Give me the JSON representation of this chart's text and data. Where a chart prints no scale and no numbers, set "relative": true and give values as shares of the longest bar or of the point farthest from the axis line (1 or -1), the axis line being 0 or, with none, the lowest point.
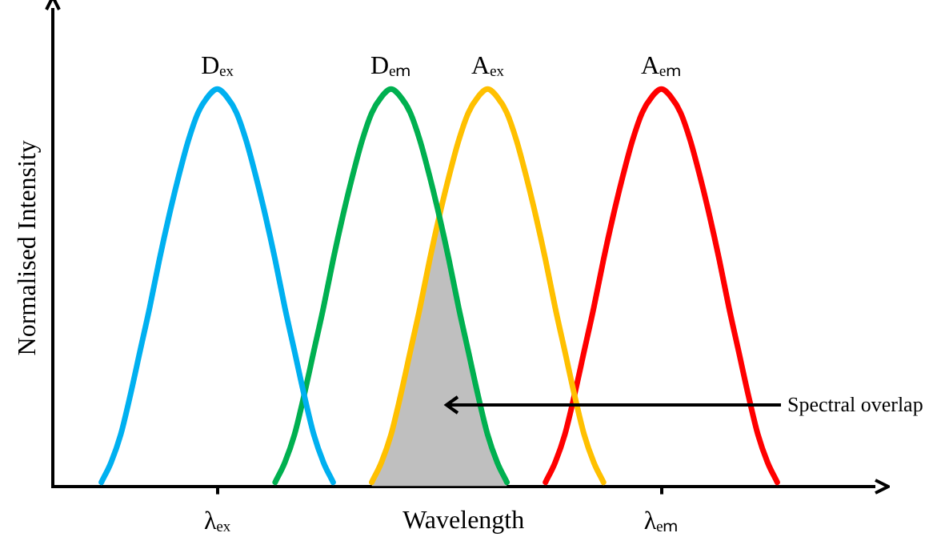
{
  "chart_data": {
    "type": "line",
    "relative": true,
    "xlabel": "Wavelength",
    "ylabel": "Normalised Intensity",
    "grid": false,
    "legend": false,
    "marker": "none",
    "line_style": "solid",
    "annotations": [
      "Spectral overlap"
    ],
    "categories": [
      null,
      null,
      null,
      null,
      null,
      null,
      null,
      null,
      null,
      null,
      null,
      null,
      null,
      null,
      null,
      null,
      null,
      "λₑₓ",
      null,
      null,
      null,
      null,
      null,
      null,
      null,
      null,
      null,
      null,
      null,
      null,
      null,
      null,
      null,
      null,
      null,
      null,
      null,
      null,
      null,
      null,
      null,
      null,
      null,
      null,
      null,
      null,
      null,
      null,
      null,
      null,
      null,
      null,
      null,
      null,
      null,
      null,
      null,
      null,
      null,
      null,
      null,
      null,
      null,
      "λₑₘ",
      null,
      null,
      null,
      null,
      null,
      null,
      null,
      null,
      null,
      null,
      null,
      null,
      null,
      null,
      null,
      null,
      null,
      null,
      null,
      null,
      null,
      null
    ],
    "series": [
      {
        "name": "Dₑₓ",
        "color": "#00b0f0",
        "values": [
          null,
          null,
          null,
          null,
          null,
          0.01,
          0.06,
          0.13,
          0.23,
          0.34,
          0.45,
          0.57,
          0.68,
          0.78,
          0.87,
          0.94,
          0.98,
          1.0,
          0.98,
          0.94,
          0.87,
          0.78,
          0.68,
          0.57,
          0.45,
          0.34,
          0.23,
          0.13,
          0.06,
          0.01,
          null,
          null,
          null,
          null,
          null,
          null,
          null,
          null,
          null,
          null,
          null,
          null,
          null,
          null,
          null,
          null,
          null,
          null,
          null,
          null,
          null,
          null,
          null,
          null,
          null,
          null,
          null,
          null,
          null,
          null,
          null,
          null,
          null,
          null,
          null,
          null,
          null,
          null,
          null,
          null,
          null,
          null,
          null,
          null,
          null,
          null,
          null,
          null,
          null,
          null,
          null,
          null,
          null,
          null,
          null,
          null
        ]
      },
      {
        "name": "Dₑₘ",
        "color": "#00b050",
        "values": [
          null,
          null,
          null,
          null,
          null,
          null,
          null,
          null,
          null,
          null,
          null,
          null,
          null,
          null,
          null,
          null,
          null,
          null,
          null,
          null,
          null,
          null,
          null,
          0.01,
          0.06,
          0.13,
          0.23,
          0.34,
          0.45,
          0.57,
          0.68,
          0.78,
          0.87,
          0.94,
          0.98,
          1.0,
          0.98,
          0.94,
          0.87,
          0.78,
          0.68,
          0.57,
          0.45,
          0.34,
          0.23,
          0.13,
          0.06,
          0.01,
          null,
          null,
          null,
          null,
          null,
          null,
          null,
          null,
          null,
          null,
          null,
          null,
          null,
          null,
          null,
          null,
          null,
          null,
          null,
          null,
          null,
          null,
          null,
          null,
          null,
          null,
          null,
          null,
          null,
          null,
          null,
          null,
          null,
          null,
          null,
          null,
          null,
          null
        ]
      },
      {
        "name": "Aₑₓ",
        "color": "#ffc000",
        "values": [
          null,
          null,
          null,
          null,
          null,
          null,
          null,
          null,
          null,
          null,
          null,
          null,
          null,
          null,
          null,
          null,
          null,
          null,
          null,
          null,
          null,
          null,
          null,
          null,
          null,
          null,
          null,
          null,
          null,
          null,
          null,
          null,
          null,
          0.01,
          0.06,
          0.13,
          0.23,
          0.34,
          0.45,
          0.57,
          0.68,
          0.78,
          0.87,
          0.94,
          0.98,
          1.0,
          0.98,
          0.94,
          0.87,
          0.78,
          0.68,
          0.57,
          0.45,
          0.34,
          0.23,
          0.13,
          0.06,
          0.01,
          null,
          null,
          null,
          null,
          null,
          null,
          null,
          null,
          null,
          null,
          null,
          null,
          null,
          null,
          null,
          null,
          null,
          null,
          null,
          null,
          null,
          null,
          null,
          null,
          null,
          null,
          null,
          null
        ]
      },
      {
        "name": "Aₑₘ",
        "color": "#ff0000",
        "values": [
          null,
          null,
          null,
          null,
          null,
          null,
          null,
          null,
          null,
          null,
          null,
          null,
          null,
          null,
          null,
          null,
          null,
          null,
          null,
          null,
          null,
          null,
          null,
          null,
          null,
          null,
          null,
          null,
          null,
          null,
          null,
          null,
          null,
          null,
          null,
          null,
          null,
          null,
          null,
          null,
          null,
          null,
          null,
          null,
          null,
          null,
          null,
          null,
          null,
          null,
          null,
          0.01,
          0.06,
          0.13,
          0.23,
          0.34,
          0.45,
          0.57,
          0.68,
          0.78,
          0.87,
          0.94,
          0.98,
          1.0,
          0.98,
          0.94,
          0.87,
          0.78,
          0.68,
          0.57,
          0.45,
          0.34,
          0.23,
          0.13,
          0.06,
          0.01,
          null,
          null,
          null,
          null,
          null,
          null,
          null,
          null,
          null,
          null
        ]
      },
      {
        "type": "area",
        "color": "#bfbfbf",
        "values": [
          null,
          null,
          null,
          null,
          null,
          null,
          null,
          null,
          null,
          null,
          null,
          null,
          null,
          null,
          null,
          null,
          null,
          null,
          null,
          null,
          null,
          null,
          null,
          null,
          null,
          null,
          null,
          null,
          null,
          null,
          null,
          null,
          null,
          0.01,
          0.06,
          0.13,
          0.23,
          0.34,
          0.45,
          0.57,
          0.68,
          0.57,
          0.45,
          0.34,
          0.23,
          0.13,
          0.06,
          0.01,
          null,
          null,
          null,
          null,
          null,
          null,
          null,
          null,
          null,
          null,
          null,
          null,
          null,
          null,
          null,
          null,
          null,
          null,
          null,
          null,
          null,
          null,
          null,
          null,
          null,
          null,
          null,
          null,
          null,
          null,
          null,
          null,
          null,
          null,
          null,
          null,
          null,
          null
        ]
      }
    ]
  }
}
